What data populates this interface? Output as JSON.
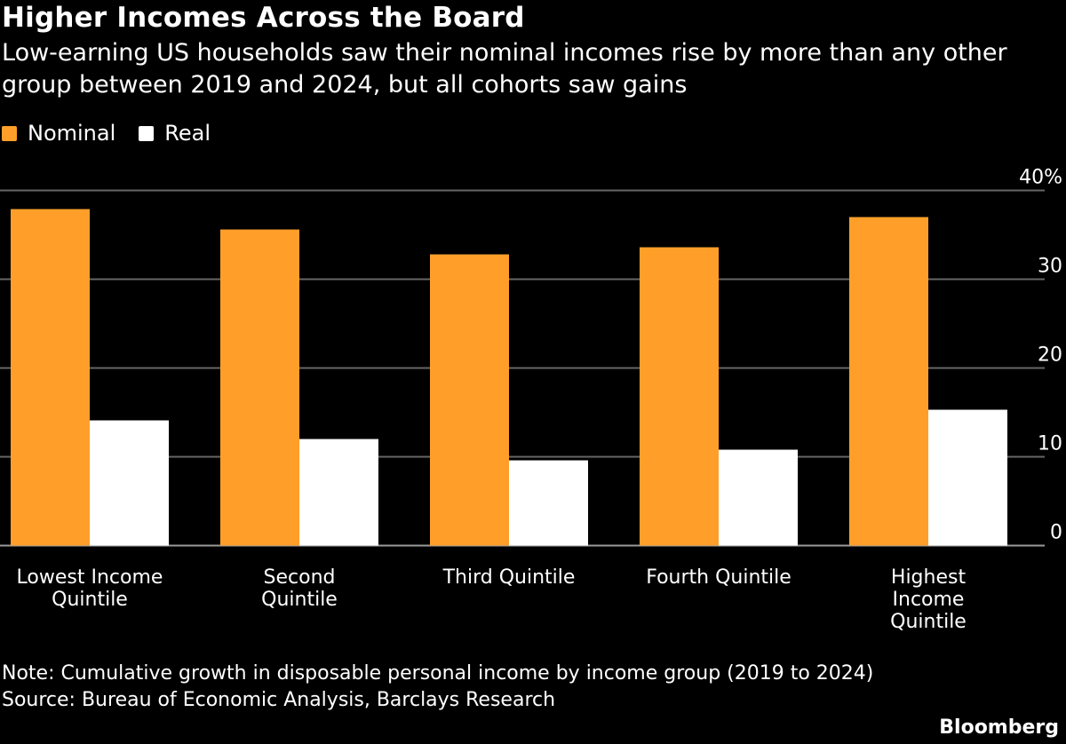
{
  "chart_data": {
    "type": "bar",
    "title": "Higher Incomes Across the Board",
    "subtitle": "Low-earning US households saw their nominal incomes rise by more than any other group between 2019 and 2024, but all cohorts saw gains",
    "categories": [
      [
        "Lowest Income",
        "Quintile"
      ],
      [
        "Second",
        "Quintile"
      ],
      [
        "Third Quintile"
      ],
      [
        "Fourth Quintile"
      ],
      [
        "Highest",
        "Income",
        "Quintile"
      ]
    ],
    "series": [
      {
        "name": "Nominal",
        "color": "#ff9f2a",
        "values": [
          37.9,
          35.6,
          32.8,
          33.6,
          37.0
        ]
      },
      {
        "name": "Real",
        "color": "#ffffff",
        "values": [
          14.1,
          12.0,
          9.6,
          10.8,
          15.3
        ]
      }
    ],
    "ylim": [
      0,
      40
    ],
    "yticks": [
      "0",
      "10",
      "20",
      "30",
      "40%"
    ],
    "ytick_values": [
      0,
      10,
      20,
      30,
      40
    ],
    "grid": true,
    "y_axis_side": "right",
    "legend_position": "top-left",
    "note": "Note: Cumulative growth in disposable personal income by income group (2019 to 2024)",
    "source": "Source: Bureau of Economic Analysis, Barclays Research"
  },
  "brand": "Bloomberg"
}
